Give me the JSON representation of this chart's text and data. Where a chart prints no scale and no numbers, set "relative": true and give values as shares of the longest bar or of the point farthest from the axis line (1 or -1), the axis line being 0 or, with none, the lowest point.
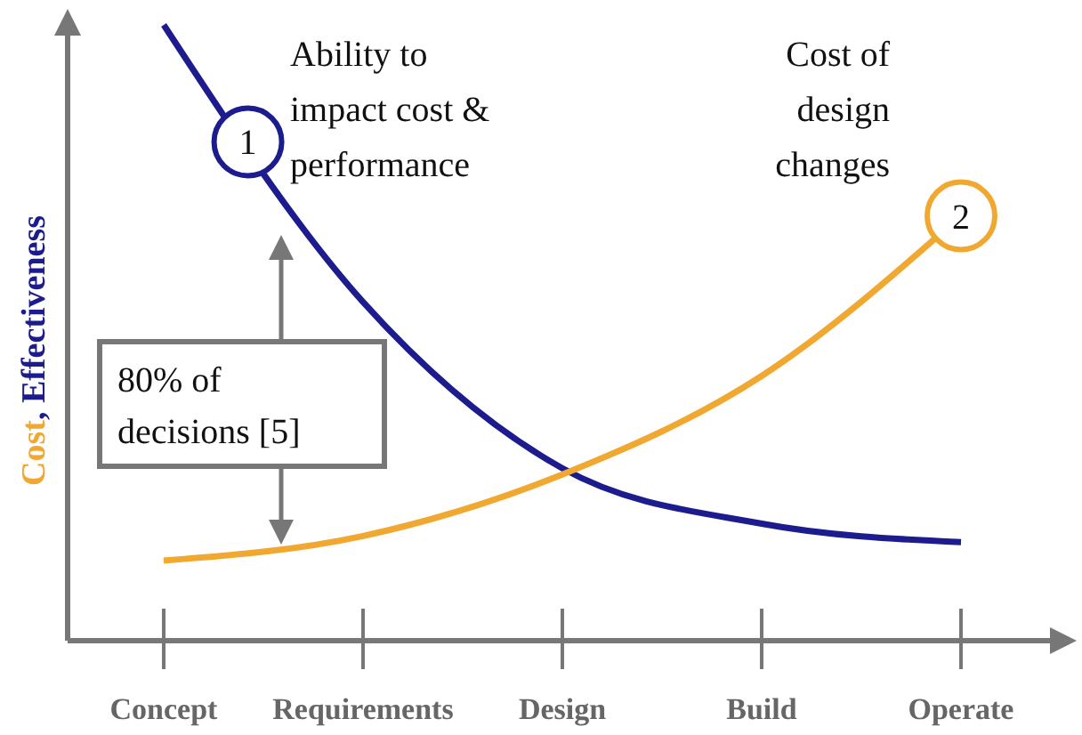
{
  "chart_data": {
    "type": "line",
    "relative": true,
    "ylabel": "Cost, Effectiveness",
    "categories": [
      "Concept",
      "Requirements",
      "Design",
      "Build",
      "Operate"
    ],
    "series": [
      {
        "name": "Ability to impact cost & performance",
        "color": "#1c1c8f",
        "values": [
          1,
          0.55,
          0.28,
          0.19,
          0.16
        ]
      },
      {
        "name": "Cost of design changes",
        "color": "#f0a830",
        "values": [
          0.13,
          0.17,
          0.27,
          0.43,
          0.69
        ]
      }
    ],
    "annotations": [
      {
        "text": "1",
        "y": 0.81
      },
      {
        "text": "2",
        "x": "Operate",
        "y": 0.69
      },
      "80% of decisions [5]"
    ],
    "grid": false,
    "marker": "none",
    "line_style": "solid"
  }
}
